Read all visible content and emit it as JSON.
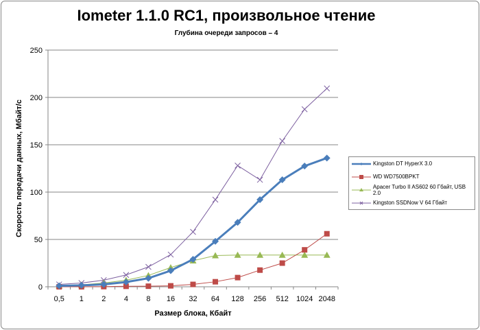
{
  "chart_data": {
    "type": "line",
    "title": "Iometer 1.1.0 RC1, произвольное чтение",
    "subtitle": "Глубина очереди запросов – 4",
    "xlabel": "Размер блока, Кбайт",
    "ylabel": "Скорость передачи данных, Мбайт/с",
    "ylim": [
      0,
      250
    ],
    "yticks": [
      "0",
      "50",
      "100",
      "150",
      "200",
      "250"
    ],
    "categories": [
      "0,5",
      "1",
      "2",
      "4",
      "8",
      "16",
      "32",
      "64",
      "128",
      "256",
      "512",
      "1024",
      "2048"
    ],
    "grid": "horizontal",
    "legend_position": "right",
    "series": [
      {
        "name": "Kingston DT HyperX 3.0",
        "color": "#4a7ebb",
        "marker": "diamond",
        "values": [
          1,
          1.5,
          2.5,
          5,
          9,
          17,
          29,
          48,
          68,
          92,
          113,
          127.5,
          136
        ]
      },
      {
        "name": "WD WD7500BPKT",
        "color": "#be4b48",
        "marker": "square",
        "values": [
          0,
          0,
          0.2,
          0.5,
          0.6,
          1,
          2.5,
          5.3,
          9.7,
          17.6,
          25,
          39,
          56
        ]
      },
      {
        "name": "Apacer Turbo II AS602 60 Гбайт, USB 2.0",
        "color": "#98b954",
        "marker": "triangle",
        "values": [
          1,
          2,
          4,
          7,
          12,
          20.3,
          27.5,
          33,
          33.5,
          33.5,
          33.5,
          33.5,
          33.5
        ]
      },
      {
        "name": "Kingston SSDNow V 64 Гбайт",
        "color": "#7d60a0",
        "marker": "x",
        "values": [
          2.5,
          4,
          7,
          12.5,
          21,
          34,
          58,
          92,
          128,
          113,
          154,
          187.5,
          209.5
        ]
      }
    ]
  }
}
